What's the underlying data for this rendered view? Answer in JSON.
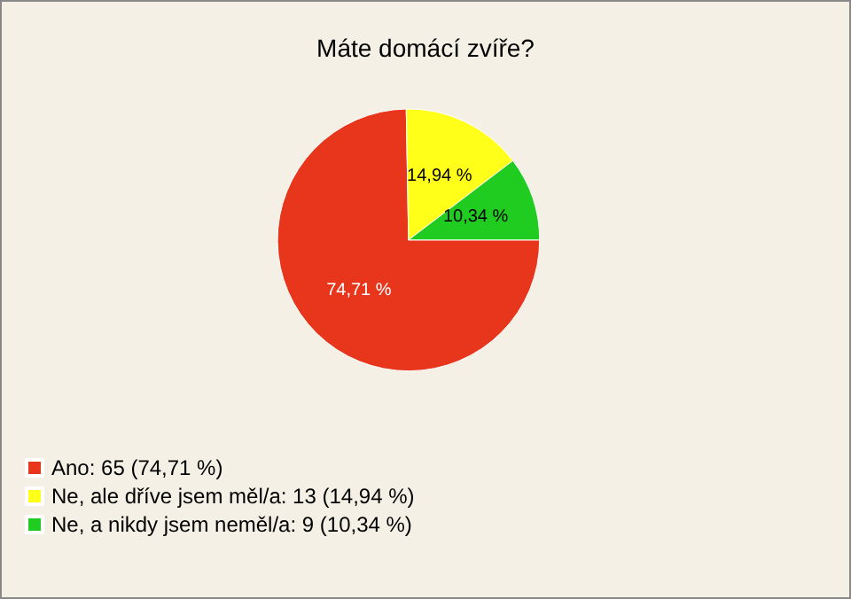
{
  "chart_data": {
    "type": "pie",
    "title": "Máte domácí zvíře?",
    "categories": [
      "Ano: 65 (74,71 %)",
      "Ne, ale dříve jsem měl/a: 13 (14,94 %)",
      "Ne, a nikdy jsem neměl/a: 9 (10,34 %)"
    ],
    "values": [
      74.71,
      14.94,
      10.34
    ],
    "value_labels": [
      "74,71 %",
      "14,94 %",
      "10,34 %"
    ],
    "colors": [
      "#e8361c",
      "#ffff1a",
      "#1fcc1f"
    ],
    "legend": "bottom left"
  }
}
